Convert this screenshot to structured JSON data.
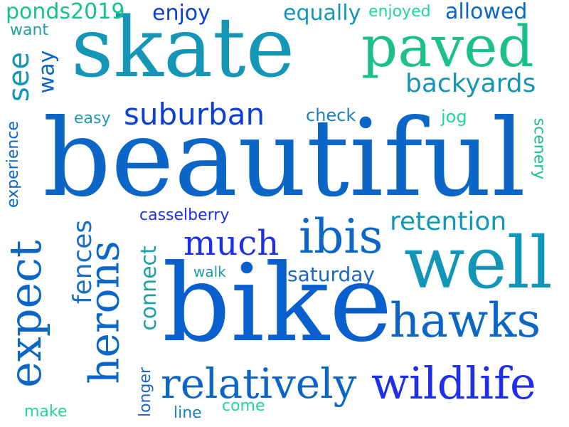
{
  "words": [
    {
      "text": "beautiful",
      "color": "#0b66c8"
    },
    {
      "text": "bike",
      "color": "#0a5fcf"
    },
    {
      "text": "skate",
      "color": "#1496b6"
    },
    {
      "text": "paved",
      "color": "#1cc08d"
    },
    {
      "text": "well",
      "color": "#1296b7"
    },
    {
      "text": "hawks",
      "color": "#0b66c8"
    },
    {
      "text": "wildlife",
      "color": "#1d2fe8"
    },
    {
      "text": "relatively",
      "color": "#0b66c8"
    },
    {
      "text": "expect",
      "color": "#0b66c8"
    },
    {
      "text": "herons",
      "color": "#0b66c8"
    },
    {
      "text": "ibis",
      "color": "#0b66c8"
    },
    {
      "text": "much",
      "color": "#1d2fe8"
    },
    {
      "text": "suburban",
      "color": "#0b3fd6"
    },
    {
      "text": "backyards",
      "color": "#1496b6"
    },
    {
      "text": "retention",
      "color": "#1496b6"
    },
    {
      "text": "saturday",
      "color": "#1d66c8"
    },
    {
      "text": "fences",
      "color": "#1c70c2"
    },
    {
      "text": "connect",
      "color": "#1ea0a8"
    },
    {
      "text": "see",
      "color": "#1496b6"
    },
    {
      "text": "way",
      "color": "#0b66c8"
    },
    {
      "text": "ponds2019",
      "color": "#1cc08d"
    },
    {
      "text": "want",
      "color": "#1ea0a8"
    },
    {
      "text": "enjoy",
      "color": "#0b3fd6"
    },
    {
      "text": "equally",
      "color": "#1296b7"
    },
    {
      "text": "enjoyed",
      "color": "#22d59a"
    },
    {
      "text": "allowed",
      "color": "#0b66c8"
    },
    {
      "text": "easy",
      "color": "#1c9ab0"
    },
    {
      "text": "check",
      "color": "#1c80bc"
    },
    {
      "text": "jog",
      "color": "#22d59a"
    },
    {
      "text": "scenery",
      "color": "#1cc08d"
    },
    {
      "text": "experience",
      "color": "#0b66c8"
    },
    {
      "text": "casselberry",
      "color": "#1d2fe8"
    },
    {
      "text": "walk",
      "color": "#1c9ab0"
    },
    {
      "text": "longer",
      "color": "#1d66c8"
    },
    {
      "text": "line",
      "color": "#1c80bc"
    },
    {
      "text": "come",
      "color": "#22d59a"
    },
    {
      "text": "make",
      "color": "#22d59a"
    }
  ]
}
